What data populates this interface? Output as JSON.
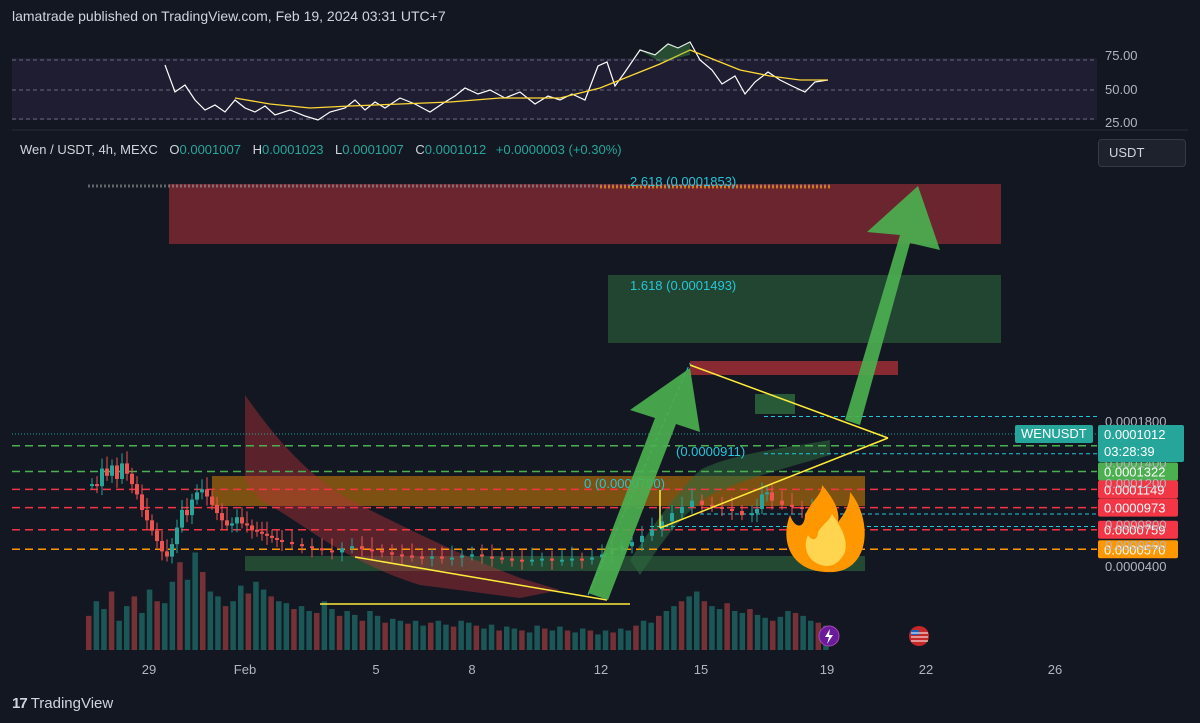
{
  "header": {
    "text": "lamatrade published on TradingView.com, Feb 19, 2024 03:31 UTC+7"
  },
  "legend": {
    "symbol": "Wen / USDT, 4h, MEXC",
    "o_label": "O",
    "o": "0.0001007",
    "h_label": "H",
    "h": "0.0001023",
    "l_label": "L",
    "l": "0.0001007",
    "c_label": "C",
    "c": "0.0001012",
    "change": "+0.0000003 (+0.30%)"
  },
  "currency_button": "USDT",
  "footer": {
    "brand": "TradingView",
    "mark": "17"
  },
  "price_tags": {
    "symbol": "WENUSDT",
    "current": "0.0001012",
    "countdown": "03:28:39"
  },
  "colors": {
    "background": "#131722",
    "up": "#26a69a",
    "down": "#ef5350",
    "green_level": "#4caf50",
    "red_level": "#f23645",
    "orange_level": "#ff9800",
    "fib": "#26c6da",
    "triangle": "#ffeb3b",
    "arrow": "#4caf50"
  },
  "chart_data": {
    "type": "candlestick",
    "title": "Wen / USDT, 4h, MEXC",
    "y_axis_ticks": [
      "0.0001800",
      "0.0001600",
      "0.0001400",
      "0.0001200",
      "0.0000800",
      "0.0000600",
      "0.0000400"
    ],
    "x_axis_ticks": [
      "29",
      "Feb",
      "5",
      "8",
      "12",
      "15",
      "19",
      "22",
      "26"
    ],
    "ylim": [
      3.5e-05,
      0.000195
    ],
    "price_levels": [
      {
        "label": "0.0001570",
        "value": 0.000157,
        "color": "#4caf50",
        "style": "dashed"
      },
      {
        "label": "0.0001322",
        "value": 0.0001322,
        "color": "#4caf50",
        "style": "dashed"
      },
      {
        "label": "0.0001149",
        "value": 0.0001149,
        "color": "#f23645",
        "style": "dashed"
      },
      {
        "label": "0.0000973",
        "value": 9.73e-05,
        "color": "#f23645",
        "style": "dashed"
      },
      {
        "label": "0.0000759",
        "value": 7.59e-05,
        "color": "#f23645",
        "style": "dashed"
      },
      {
        "label": "0.0000570",
        "value": 5.7e-05,
        "color": "#ff9800",
        "style": "dashed"
      }
    ],
    "fib_labels": [
      {
        "text": "2.618 (0.0001853)",
        "value": 0.0001853
      },
      {
        "text": "1.618 (0.0001493)",
        "value": 0.0001493
      },
      {
        "text": "(0.0000911)",
        "value": 9.11e-05
      },
      {
        "text": "0 (0.0000790)",
        "value": 7.9e-05
      }
    ],
    "rsi_ticks": [
      "75.00",
      "50.00",
      "25.00"
    ]
  }
}
